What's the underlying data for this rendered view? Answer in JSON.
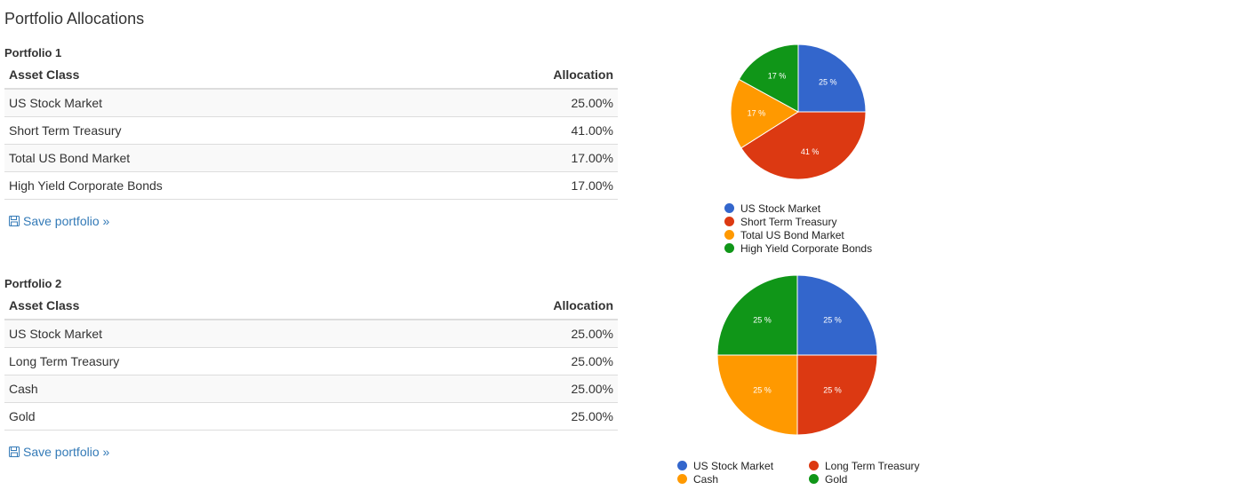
{
  "page": {
    "title": "Portfolio Allocations"
  },
  "portfolios": [
    {
      "title": "Portfolio 1",
      "headers": {
        "asset_class": "Asset Class",
        "allocation": "Allocation"
      },
      "rows": [
        {
          "asset": "US Stock Market",
          "allocation": "25.00%"
        },
        {
          "asset": "Short Term Treasury",
          "allocation": "41.00%"
        },
        {
          "asset": "Total US Bond Market",
          "allocation": "17.00%"
        },
        {
          "asset": "High Yield Corporate Bonds",
          "allocation": "17.00%"
        }
      ],
      "save_label": "Save portfolio »",
      "save_icon": "floppy-disk-icon"
    },
    {
      "title": "Portfolio 2",
      "headers": {
        "asset_class": "Asset Class",
        "allocation": "Allocation"
      },
      "rows": [
        {
          "asset": "US Stock Market",
          "allocation": "25.00%"
        },
        {
          "asset": "Long Term Treasury",
          "allocation": "25.00%"
        },
        {
          "asset": "Cash",
          "allocation": "25.00%"
        },
        {
          "asset": "Gold",
          "allocation": "25.00%"
        }
      ],
      "save_label": "Save portfolio »",
      "save_icon": "floppy-disk-icon"
    }
  ],
  "chart_data": [
    {
      "type": "pie",
      "categories": [
        "US Stock Market",
        "Short Term Treasury",
        "Total US Bond Market",
        "High Yield Corporate Bonds"
      ],
      "values": [
        25,
        41,
        17,
        17
      ],
      "labels": [
        "25 %",
        "41 %",
        "17 %",
        "17 %"
      ],
      "colors": [
        "#3366cc",
        "#dc3912",
        "#ff9900",
        "#109618"
      ],
      "legend": "bottom"
    },
    {
      "type": "pie",
      "categories": [
        "US Stock Market",
        "Long Term Treasury",
        "Cash",
        "Gold"
      ],
      "values": [
        25,
        25,
        25,
        25
      ],
      "labels": [
        "25 %",
        "25 %",
        "25 %",
        "25 %"
      ],
      "colors": [
        "#3366cc",
        "#dc3912",
        "#ff9900",
        "#109618"
      ],
      "legend": "bottom"
    }
  ]
}
